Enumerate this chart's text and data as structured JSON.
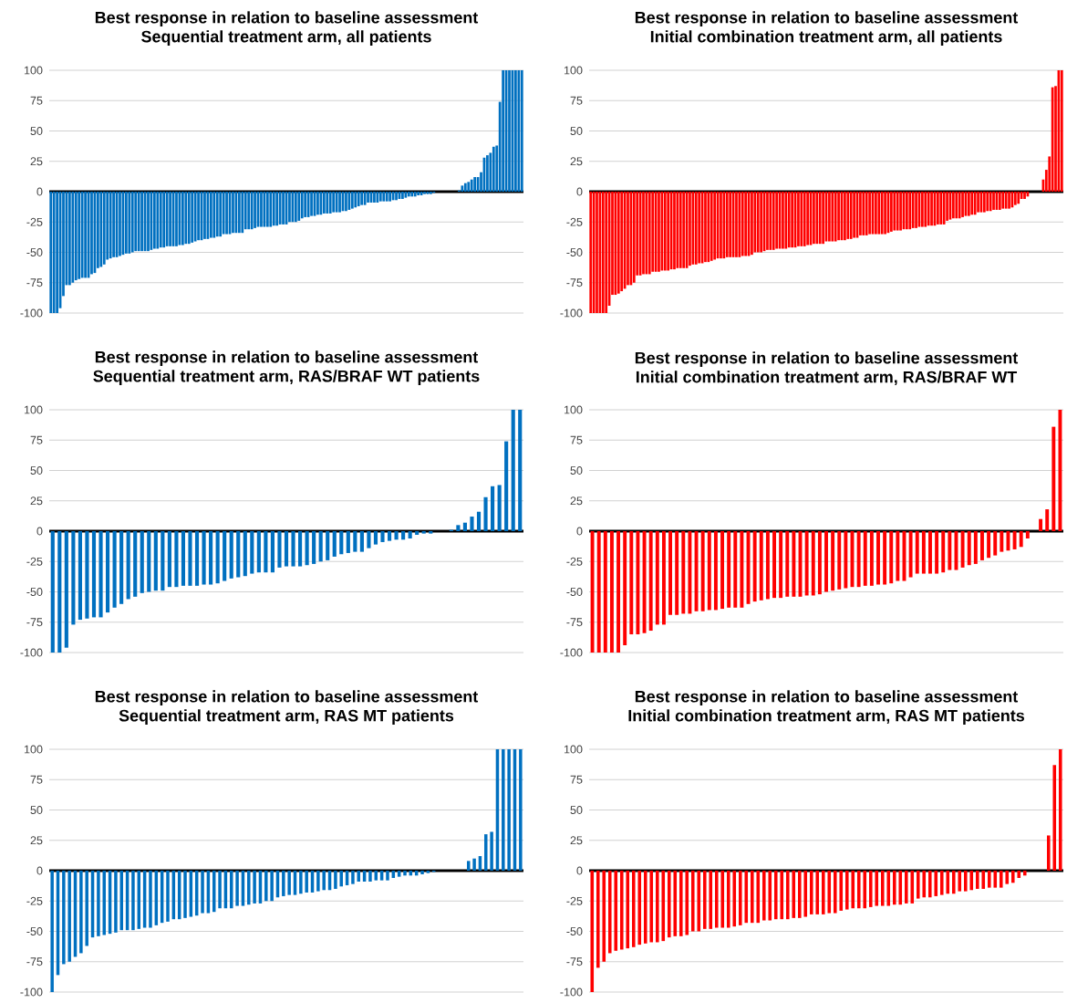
{
  "chart_data": [
    {
      "type": "bar",
      "title": "Best response in relation to baseline assessment",
      "subtitle": "Sequential treatment arm, all patients",
      "color": "#0070c0",
      "ylim": [
        -100,
        100
      ],
      "yticks": [
        -100,
        -75,
        -50,
        -25,
        0,
        25,
        50,
        75,
        100
      ],
      "grid": "y",
      "tick_labels": "y",
      "values": [
        -100,
        -100,
        -100,
        -96,
        -86,
        -77,
        -77,
        -75,
        -73,
        -72,
        -71,
        -71,
        -71,
        -68,
        -67,
        -63,
        -62,
        -60,
        -56,
        -55,
        -54,
        -54,
        -53,
        -52,
        -51,
        -51,
        -50,
        -49,
        -49,
        -49,
        -49,
        -49,
        -48,
        -47,
        -47,
        -46,
        -46,
        -45,
        -45,
        -45,
        -45,
        -44,
        -44,
        -43,
        -43,
        -42,
        -41,
        -40,
        -40,
        -39,
        -39,
        -38,
        -38,
        -37,
        -37,
        -35,
        -35,
        -35,
        -34,
        -34,
        -34,
        -34,
        -31,
        -31,
        -31,
        -30,
        -29,
        -29,
        -29,
        -29,
        -29,
        -28,
        -28,
        -27,
        -27,
        -27,
        -25,
        -25,
        -25,
        -24,
        -22,
        -21,
        -21,
        -20,
        -20,
        -19,
        -19,
        -18,
        -18,
        -18,
        -17,
        -17,
        -17,
        -16,
        -16,
        -15,
        -14,
        -13,
        -12,
        -11,
        -11,
        -9,
        -9,
        -9,
        -9,
        -8,
        -8,
        -8,
        -8,
        -7,
        -7,
        -6,
        -6,
        -5,
        -4,
        -4,
        -4,
        -3,
        -3,
        -2,
        -2,
        -2,
        -1,
        0,
        0,
        0,
        0,
        0,
        0,
        0,
        1,
        5,
        7,
        8,
        10,
        12,
        12,
        16,
        28,
        30,
        32,
        37,
        38,
        74,
        100,
        100,
        100,
        100,
        100,
        100,
        100
      ]
    },
    {
      "type": "bar",
      "title": "Best response in relation to baseline assessment",
      "subtitle": "Initial combination treatment arm, all patients",
      "color": "#ff0000",
      "ylim": [
        -100,
        100
      ],
      "yticks": [
        -100,
        -75,
        -50,
        -25,
        0,
        25,
        50,
        75,
        100
      ],
      "grid": "y",
      "tick_labels": "y",
      "values": [
        -100,
        -100,
        -100,
        -100,
        -100,
        -100,
        -94,
        -85,
        -85,
        -84,
        -82,
        -80,
        -77,
        -77,
        -75,
        -69,
        -69,
        -68,
        -68,
        -68,
        -66,
        -66,
        -66,
        -65,
        -65,
        -65,
        -64,
        -64,
        -63,
        -63,
        -63,
        -63,
        -61,
        -60,
        -60,
        -59,
        -59,
        -58,
        -58,
        -57,
        -56,
        -55,
        -55,
        -55,
        -54,
        -54,
        -54,
        -54,
        -54,
        -53,
        -53,
        -53,
        -52,
        -50,
        -50,
        -50,
        -49,
        -48,
        -48,
        -48,
        -47,
        -47,
        -47,
        -47,
        -46,
        -46,
        -46,
        -45,
        -45,
        -45,
        -44,
        -44,
        -43,
        -43,
        -43,
        -43,
        -41,
        -41,
        -41,
        -41,
        -40,
        -40,
        -40,
        -39,
        -39,
        -38,
        -38,
        -36,
        -36,
        -36,
        -35,
        -35,
        -35,
        -35,
        -35,
        -35,
        -34,
        -33,
        -32,
        -32,
        -32,
        -31,
        -31,
        -31,
        -30,
        -30,
        -29,
        -29,
        -29,
        -28,
        -28,
        -28,
        -27,
        -27,
        -27,
        -24,
        -23,
        -22,
        -22,
        -22,
        -21,
        -20,
        -20,
        -19,
        -19,
        -17,
        -17,
        -17,
        -16,
        -16,
        -15,
        -15,
        -15,
        -14,
        -14,
        -14,
        -13,
        -11,
        -10,
        -6,
        -6,
        -4,
        0,
        0,
        0,
        0,
        10,
        18,
        29,
        86,
        87,
        100,
        100
      ]
    },
    {
      "type": "bar",
      "title": "Best response in relation to baseline assessment",
      "subtitle": "Sequential treatment arm, RAS/BRAF WT patients",
      "color": "#0070c0",
      "ylim": [
        -100,
        100
      ],
      "yticks": [
        -100,
        -75,
        -50,
        -25,
        0,
        25,
        50,
        75,
        100
      ],
      "grid": "y",
      "tick_labels": "y",
      "values": [
        -100,
        -100,
        -96,
        -77,
        -73,
        -72,
        -71,
        -71,
        -67,
        -63,
        -60,
        -56,
        -54,
        -51,
        -50,
        -49,
        -49,
        -46,
        -46,
        -45,
        -45,
        -45,
        -44,
        -44,
        -43,
        -41,
        -39,
        -38,
        -37,
        -35,
        -34,
        -34,
        -34,
        -30,
        -29,
        -29,
        -29,
        -28,
        -27,
        -25,
        -24,
        -21,
        -19,
        -18,
        -17,
        -17,
        -14,
        -11,
        -9,
        -8,
        -7,
        -7,
        -6,
        -3,
        -2,
        -2,
        0,
        0,
        1,
        5,
        7,
        12,
        16,
        28,
        37,
        38,
        74,
        100,
        100
      ]
    },
    {
      "type": "bar",
      "title": "Best response in relation to baseline assessment",
      "subtitle": "Initial combination treatment arm, RAS/BRAF WT",
      "color": "#ff0000",
      "ylim": [
        -100,
        100
      ],
      "yticks": [
        -100,
        -75,
        -50,
        -25,
        0,
        25,
        50,
        75,
        100
      ],
      "grid": "y",
      "tick_labels": "y",
      "values": [
        -100,
        -100,
        -100,
        -100,
        -100,
        -94,
        -85,
        -85,
        -84,
        -82,
        -77,
        -77,
        -69,
        -69,
        -68,
        -68,
        -66,
        -66,
        -65,
        -65,
        -64,
        -63,
        -63,
        -63,
        -60,
        -58,
        -57,
        -56,
        -55,
        -55,
        -54,
        -54,
        -54,
        -53,
        -53,
        -52,
        -50,
        -49,
        -48,
        -47,
        -46,
        -46,
        -45,
        -45,
        -44,
        -44,
        -43,
        -41,
        -41,
        -38,
        -35,
        -35,
        -35,
        -35,
        -34,
        -32,
        -32,
        -30,
        -28,
        -27,
        -24,
        -22,
        -20,
        -17,
        -16,
        -15,
        -13,
        -6,
        0,
        10,
        18,
        86,
        100
      ]
    },
    {
      "type": "bar",
      "title": "Best response in relation to baseline assessment",
      "subtitle": "Sequential treatment arm, RAS MT patients",
      "color": "#0070c0",
      "ylim": [
        -100,
        100
      ],
      "yticks": [
        -100,
        -75,
        -50,
        -25,
        0,
        25,
        50,
        75,
        100
      ],
      "grid": "y",
      "tick_labels": "y",
      "values": [
        -100,
        -86,
        -77,
        -75,
        -71,
        -68,
        -62,
        -55,
        -54,
        -53,
        -52,
        -51,
        -49,
        -49,
        -49,
        -48,
        -47,
        -47,
        -45,
        -43,
        -42,
        -40,
        -40,
        -39,
        -38,
        -37,
        -35,
        -35,
        -34,
        -31,
        -31,
        -31,
        -29,
        -29,
        -28,
        -27,
        -27,
        -25,
        -25,
        -22,
        -21,
        -20,
        -20,
        -19,
        -18,
        -18,
        -17,
        -16,
        -16,
        -15,
        -13,
        -12,
        -11,
        -9,
        -9,
        -9,
        -8,
        -8,
        -8,
        -6,
        -5,
        -4,
        -4,
        -4,
        -3,
        -2,
        -1,
        0,
        0,
        0,
        0,
        0,
        8,
        10,
        12,
        30,
        32,
        100,
        100,
        100,
        100,
        100
      ]
    },
    {
      "type": "bar",
      "title": "Best response in relation to baseline assessment",
      "subtitle": "Initial combination treatment arm, RAS MT patients",
      "color": "#ff0000",
      "ylim": [
        -100,
        100
      ],
      "yticks": [
        -100,
        -75,
        -50,
        -25,
        0,
        25,
        50,
        75,
        100
      ],
      "grid": "y",
      "tick_labels": "y",
      "values": [
        -100,
        -80,
        -75,
        -68,
        -66,
        -65,
        -64,
        -63,
        -61,
        -60,
        -59,
        -59,
        -58,
        -55,
        -54,
        -54,
        -53,
        -50,
        -50,
        -48,
        -48,
        -47,
        -47,
        -47,
        -46,
        -45,
        -43,
        -43,
        -43,
        -41,
        -41,
        -40,
        -40,
        -40,
        -39,
        -39,
        -38,
        -36,
        -36,
        -36,
        -35,
        -35,
        -33,
        -32,
        -31,
        -31,
        -31,
        -30,
        -29,
        -29,
        -29,
        -28,
        -28,
        -27,
        -27,
        -23,
        -22,
        -22,
        -21,
        -20,
        -19,
        -19,
        -17,
        -17,
        -16,
        -15,
        -15,
        -14,
        -14,
        -14,
        -11,
        -10,
        -6,
        -4,
        0,
        0,
        0,
        29,
        87,
        100
      ]
    }
  ]
}
